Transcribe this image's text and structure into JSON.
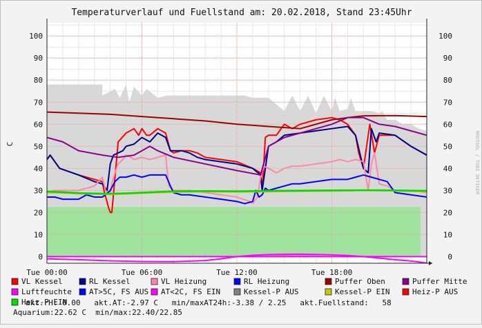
{
  "chart_data": {
    "type": "line",
    "title": "Temperaturverlauf und Fuellstand am: 20.02.2018, Stand 23:45Uhr",
    "ylabel": "C",
    "watermark": "RRDTOOL / TOBI OETIKER",
    "ylim": [
      -3,
      106
    ],
    "yticks": [
      "100",
      "90",
      "80",
      "70",
      "60",
      "50",
      "40",
      "30",
      "20",
      "10",
      "0"
    ],
    "xlim_hours": [
      0,
      24
    ],
    "xticks": [
      {
        "hour": 0,
        "label": "Tue 00:00"
      },
      {
        "hour": 6,
        "label": "Tue 06:00"
      },
      {
        "hour": 12,
        "label": "Tue 12:00"
      },
      {
        "hour": 18,
        "label": "Tue 18:00"
      }
    ],
    "colors": {
      "background": "#f3f3f3",
      "plot_bg": "#ffffff",
      "grid_major": "#e8a0a0",
      "grid_minor": "#e6e6e6",
      "kessel_p_aus_area": "#d8d8d8",
      "heiz_p_ein_area": "#9fe39f"
    },
    "series": [
      {
        "name": "VL Kessel",
        "color": "#ff0000",
        "x": [
          0,
          0.2,
          0.8,
          2,
          3,
          3.5,
          3.6,
          3.9,
          4,
          4.1,
          4.5,
          5,
          5.5,
          5.8,
          6,
          6.3,
          6.5,
          7,
          7.5,
          7.8,
          8,
          8.5,
          9,
          9.5,
          10,
          11,
          12,
          13,
          13.5,
          13.6,
          13.8,
          14,
          14.5,
          15,
          15.5,
          16,
          17,
          18,
          18.5,
          19,
          19.5,
          19.7,
          20,
          20.4,
          20.5,
          20.7,
          21,
          22,
          23,
          24
        ],
        "y": [
          44,
          46,
          40,
          37,
          35,
          34,
          30,
          22,
          20,
          20,
          52,
          56,
          58,
          55,
          58,
          55,
          55,
          58,
          56,
          48,
          47,
          48,
          48,
          47,
          45,
          44,
          43,
          40,
          38,
          30,
          54,
          55,
          55,
          60,
          58,
          60,
          62,
          63,
          62,
          60,
          55,
          47,
          40,
          60,
          56,
          47,
          55,
          55,
          50,
          46
        ]
      },
      {
        "name": "RL Kessel",
        "color": "#00008b",
        "x": [
          0,
          0.2,
          0.8,
          2,
          3,
          3.5,
          3.8,
          4,
          4.2,
          4.8,
          5,
          5.5,
          6,
          6.5,
          7,
          7.5,
          7.8,
          8,
          8.5,
          9,
          9.5,
          10,
          11,
          12,
          13,
          13.5,
          13.6,
          14,
          14.5,
          15,
          16,
          17,
          18,
          19,
          19.5,
          20,
          20.3,
          20.5,
          20.8,
          21,
          22,
          23,
          24
        ],
        "y": [
          44,
          46,
          40,
          37,
          34,
          33,
          30,
          42,
          46,
          48,
          50,
          51,
          54,
          52,
          56,
          54,
          48,
          48,
          48,
          47,
          45,
          44,
          43,
          42,
          40,
          37,
          30,
          50,
          52,
          55,
          56,
          57,
          58,
          59,
          55,
          40,
          38,
          58,
          52,
          56,
          55,
          50,
          46
        ]
      },
      {
        "name": "VL Heizung",
        "color": "#ff88aa",
        "x": [
          0,
          0.5,
          1,
          2,
          2.5,
          3,
          3.5,
          3.7,
          4,
          4.1,
          4.3,
          4.5,
          4.8,
          5,
          5.3,
          5.5,
          6,
          6.5,
          7,
          7.5,
          7.7,
          8,
          9,
          10,
          11,
          12,
          12.8,
          13,
          13.3,
          13.5,
          13.7,
          14,
          14.5,
          15,
          15.5,
          16,
          17,
          18,
          18.5,
          19,
          19.5,
          20,
          20.3,
          20.5,
          20.7,
          21,
          21.5,
          22,
          23,
          24
        ],
        "y": [
          29,
          30,
          30,
          30,
          31,
          32,
          36,
          30,
          28,
          33,
          38,
          42,
          44,
          46,
          45,
          44,
          45,
          44,
          45,
          46,
          32,
          30,
          30,
          29,
          28,
          27,
          25,
          24,
          27,
          36,
          41,
          40,
          38,
          40,
          41,
          41,
          42,
          43,
          44,
          43,
          44,
          43,
          30,
          42,
          47,
          33,
          32,
          30,
          30,
          29
        ]
      },
      {
        "name": "RL Heizung",
        "color": "#0000ff",
        "x": [
          0,
          0.5,
          1,
          2,
          2.5,
          3,
          3.5,
          3.7,
          4,
          4.3,
          4.6,
          5,
          5.5,
          6,
          6.5,
          7,
          7.5,
          7.8,
          8,
          8.5,
          9,
          10,
          11,
          12,
          12.5,
          13,
          13.2,
          13.4,
          13.6,
          13.8,
          14,
          14.5,
          15,
          15.5,
          16,
          17,
          18,
          19,
          19.5,
          20,
          20.5,
          21,
          21.5,
          22,
          23,
          24
        ],
        "y": [
          27,
          27,
          26,
          26,
          28,
          27,
          27,
          28,
          30,
          34,
          36,
          36,
          37,
          36,
          37,
          37,
          37,
          32,
          29,
          28,
          28,
          27,
          26,
          25,
          24,
          25,
          30,
          27,
          28,
          31,
          30,
          31,
          32,
          33,
          33,
          34,
          35,
          35,
          36,
          37,
          36,
          35,
          34,
          29,
          28,
          27
        ]
      },
      {
        "name": "Puffer Oben",
        "color": "#a00000",
        "x": [
          0,
          2,
          4,
          6,
          8,
          10,
          12,
          14,
          16,
          18,
          19,
          20,
          22,
          24
        ],
        "y": [
          65.5,
          65,
          64.5,
          63.5,
          62.5,
          61.5,
          60,
          59,
          58,
          62,
          63,
          63.8,
          63.9,
          63.5
        ]
      },
      {
        "name": "Puffer Mitte",
        "color": "#8b008b",
        "x": [
          0,
          1,
          2,
          3.5,
          4.5,
          5.5,
          6,
          6.5,
          7,
          8,
          10,
          12,
          13.5,
          14,
          15,
          17,
          18,
          19,
          20,
          21,
          22,
          23,
          24
        ],
        "y": [
          54,
          52,
          48,
          46,
          45,
          46,
          48,
          50,
          48,
          45,
          42,
          39,
          37,
          50,
          54,
          58,
          60,
          63,
          63,
          60,
          59,
          57,
          55
        ]
      },
      {
        "name": "Luftfeuchte",
        "color": "#ff00ff",
        "x": [
          0,
          24
        ],
        "y": [
          0,
          0
        ]
      },
      {
        "name": "AT>5C, FS AUS",
        "color": "#0000ff",
        "x": [],
        "y": []
      },
      {
        "name": "AT<2C, FS EIN",
        "color": "#ff00ff",
        "x": [
          0,
          2,
          4,
          6,
          8,
          10,
          11,
          12,
          13,
          14,
          15,
          16,
          17,
          18,
          19,
          20,
          21,
          22,
          23,
          24
        ],
        "y": [
          -1,
          -1.4,
          -1.9,
          -2.2,
          -2.3,
          -1.8,
          -1,
          0,
          0.6,
          0.9,
          1,
          1.1,
          1,
          0.8,
          0.5,
          0,
          -0.7,
          -1.4,
          -2,
          -2.9
        ]
      },
      {
        "name": "Kessel-P AUS",
        "color": "#808080",
        "x": [],
        "y": []
      },
      {
        "name": "Kessel-P EIN",
        "color": "#c8c800",
        "x": [
          0,
          1,
          2,
          3,
          4,
          5,
          6,
          8,
          10,
          12,
          14,
          16,
          18,
          20,
          22,
          24
        ],
        "y": [
          29,
          28.8,
          28.5,
          28.3,
          28.2,
          28.4,
          28.7,
          29.2,
          29.4,
          29.3,
          29.4,
          29.6,
          29.7,
          30,
          29.8,
          29.4
        ]
      },
      {
        "name": "Heiz-P AUS",
        "color": "#ff0000",
        "x": [],
        "y": []
      },
      {
        "name": "Heiz-P EIN",
        "color": "#00dd00",
        "x": [
          0,
          1,
          2,
          3,
          4,
          5,
          6,
          7,
          8,
          10,
          12,
          14,
          16,
          18,
          20,
          22,
          23,
          24
        ],
        "y": [
          29.5,
          29.2,
          28.8,
          28.6,
          28.5,
          28.7,
          29,
          29.3,
          29.6,
          29.7,
          29.6,
          29.8,
          29.9,
          30,
          30.1,
          30,
          29.9,
          29.8
        ]
      }
    ],
    "legend_order": [
      "VL Kessel",
      "RL Kessel",
      "VL Heizung",
      "RL Heizung",
      "Puffer Oben",
      "Puffer Mitte",
      "Luftfeuchte",
      "AT>5C, FS AUS",
      "AT<2C, FS EIN",
      "Kessel-P AUS",
      "Kessel-P EIN",
      "Heiz-P AUS",
      "Heiz-P EIN"
    ],
    "areas": {
      "kessel_p_aus_gray": {
        "x": [
          0,
          2.5,
          3.5,
          3.5,
          4.3,
          4.6,
          5.0,
          5.2,
          5.5,
          6,
          6.3,
          7,
          7.6,
          8,
          9,
          10,
          11,
          12,
          12.5,
          13,
          14,
          15,
          15.5,
          16,
          16.5,
          17,
          17.5,
          18,
          18.2,
          18.5,
          19,
          19.2,
          19.5,
          20,
          20.5,
          21,
          21.2,
          21.5,
          22,
          22.5,
          23,
          23.5,
          24
        ],
        "y": [
          78,
          78,
          78,
          73,
          76,
          72,
          78,
          70,
          77,
          73,
          76,
          72,
          73,
          73,
          73,
          73,
          73,
          73,
          73,
          72,
          72,
          66,
          73,
          66,
          73,
          65,
          73,
          66,
          72,
          66,
          67,
          72,
          66,
          66,
          66,
          65,
          66,
          62,
          62,
          60,
          60,
          58,
          57
        ]
      },
      "kessel_p_ein_gray": {
        "x": [
          0,
          24
        ],
        "y": [
          23,
          23
        ]
      },
      "heiz_p_ein_green": {
        "x": [
          0,
          23.6
        ],
        "y": [
          22.5,
          22.5
        ]
      },
      "at_dark_small": {
        "x": [
          12.5,
          13,
          14,
          15,
          16,
          17,
          17.5
        ],
        "y": [
          0,
          0.8,
          1.3,
          1.5,
          1.4,
          1.0,
          0
        ]
      }
    }
  },
  "status_lines": {
    "line1": "akt.rH: 0.00   akt.AT:-2.97 C   min/maxAT24h:-3.38 / 2.25   akt.Fuellstand:   58",
    "line2": "Aquarium:22.62 C  min/max:22.40/22.85"
  }
}
